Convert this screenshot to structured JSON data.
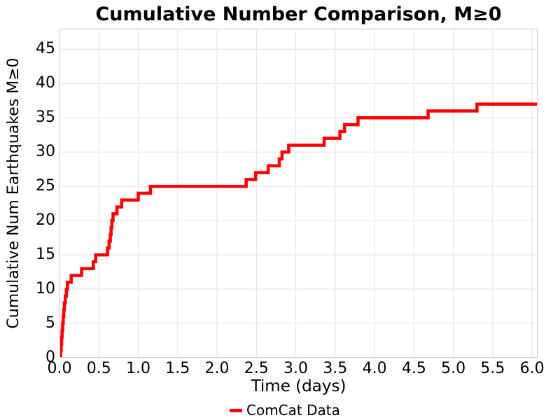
{
  "title": "Cumulative Number Comparison, M≥0",
  "axes": {
    "xlabel": "Time (days)",
    "ylabel": "Cumulative Num Earthquakes M≥0"
  },
  "legend": {
    "label": "ComCat Data",
    "color": "#ff0000",
    "position": "bottom-center"
  },
  "colors": {
    "line": "#ff0000",
    "grid": "#e6e6e6",
    "spine": "#c4c4c4",
    "text": "#000000",
    "background": "#ffffff"
  },
  "chart_data": {
    "type": "line",
    "drawstyle": "steps-post",
    "title": "Cumulative Number Comparison, M≥0",
    "xlabel": "Time (days)",
    "ylabel": "Cumulative Num Earthquakes M≥0",
    "grid": true,
    "legend_position": "below x-axis, centered",
    "xlim": [
      0,
      6.07
    ],
    "ylim": [
      0,
      48
    ],
    "xticks": [
      0.0,
      0.5,
      1.0,
      1.5,
      2.0,
      2.5,
      3.0,
      3.5,
      4.0,
      4.5,
      5.0,
      5.5,
      6.0
    ],
    "xtick_labels": [
      "0.0",
      "0.5",
      "1.0",
      "1.5",
      "2.0",
      "2.5",
      "3.0",
      "3.5",
      "4.0",
      "4.5",
      "5.0",
      "5.5",
      "6.0"
    ],
    "yticks": [
      0,
      5,
      10,
      15,
      20,
      25,
      30,
      35,
      40,
      45
    ],
    "ytick_labels": [
      "0",
      "5",
      "10",
      "15",
      "20",
      "25",
      "30",
      "35",
      "40",
      "45"
    ],
    "series": [
      {
        "name": "ComCat Data",
        "color": "#ff0000",
        "linewidth": 4.5,
        "x": [
          0.015,
          0.021,
          0.027,
          0.033,
          0.04,
          0.047,
          0.054,
          0.062,
          0.074,
          0.088,
          0.1,
          0.148,
          0.28,
          0.43,
          0.46,
          0.61,
          0.63,
          0.645,
          0.655,
          0.665,
          0.68,
          0.73,
          0.79,
          1.0,
          1.155,
          2.37,
          2.49,
          2.65,
          2.79,
          2.825,
          2.91,
          3.36,
          3.56,
          3.62,
          3.79,
          4.68,
          5.3
        ],
        "y": [
          1,
          2,
          3,
          4,
          5,
          6,
          7,
          8,
          9,
          10,
          11,
          12,
          13,
          14,
          15,
          16,
          17,
          18,
          19,
          20,
          21,
          22,
          23,
          24,
          25,
          26,
          27,
          28,
          29,
          30,
          31,
          32,
          33,
          34,
          35,
          36,
          37
        ],
        "extend_to_x": 6.07,
        "final_value": 37
      }
    ]
  }
}
